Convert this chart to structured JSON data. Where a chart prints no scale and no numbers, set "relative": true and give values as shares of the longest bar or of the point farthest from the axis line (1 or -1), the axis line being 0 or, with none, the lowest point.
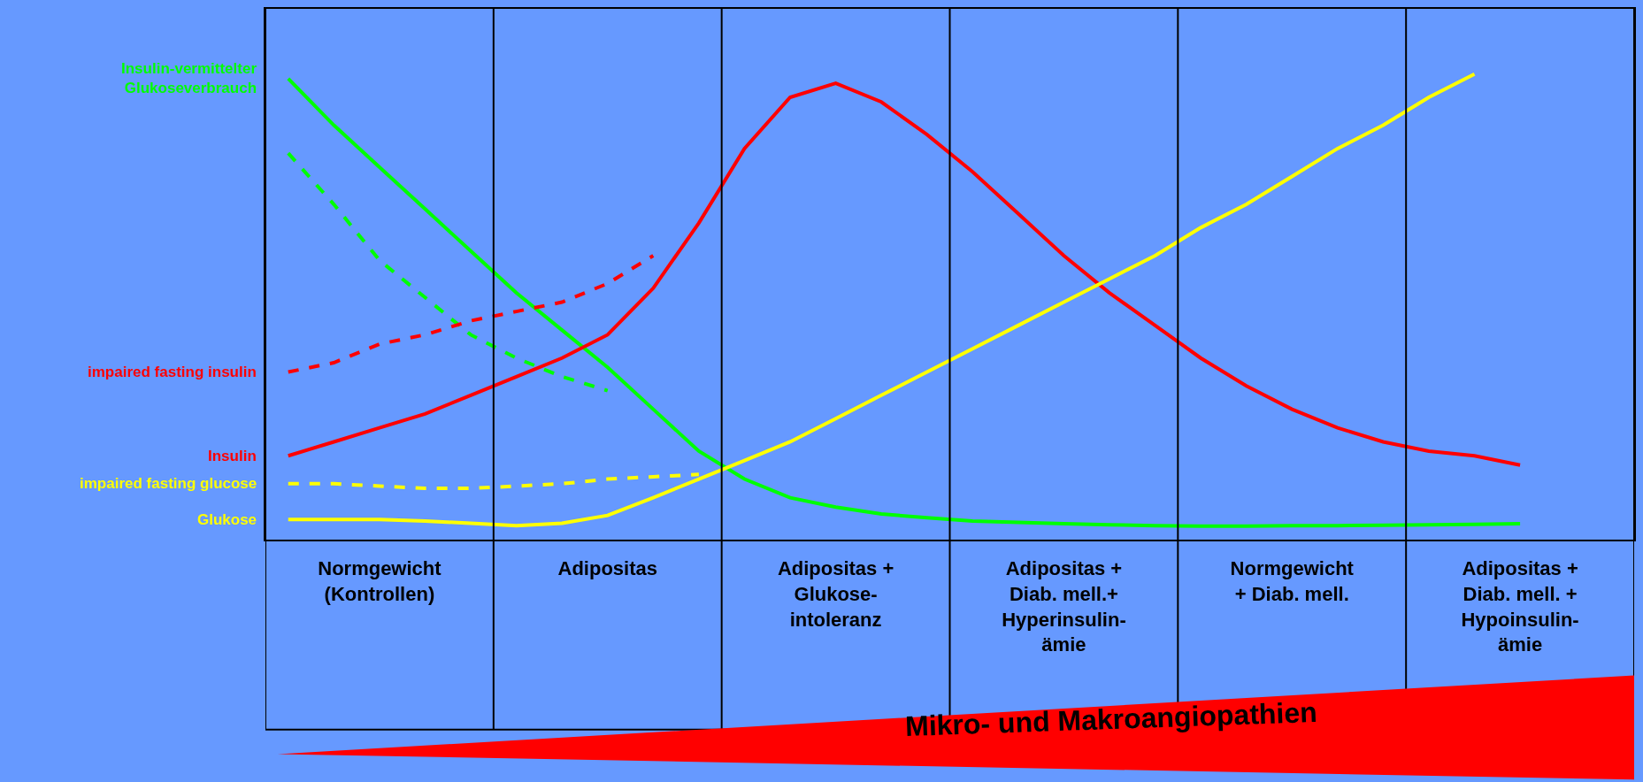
{
  "chart_data": {
    "type": "line",
    "relative": true,
    "grid": "x",
    "legend": false,
    "tick_labels": "x",
    "categories": [
      null,
      null,
      "Normgewicht\n(Kontrollen)",
      null,
      null,
      null,
      null,
      "Adipositas",
      null,
      null,
      null,
      null,
      "Adipositas +\nGlukose-\nintoleranz",
      null,
      null,
      null,
      null,
      "Adipositas +\nDiab. mell.+\nHyperinsulin-\nämie",
      null,
      null,
      null,
      null,
      "Normgewicht\n+ Diab. mell.",
      null,
      null,
      null,
      null,
      "Adipositas +\nDiab. mell. +\nHypoinsulin-\nämie",
      null,
      null
    ],
    "series": [
      {
        "name": "Insulin-vermittelter\nGlukoseverbrauch",
        "color": "#00ff00",
        "line_style": "solid",
        "values": [
          0.99,
          0.89,
          0.8,
          0.71,
          0.62,
          0.53,
          0.45,
          0.37,
          0.28,
          0.19,
          0.13,
          0.09,
          0.07,
          0.055,
          0.047,
          0.04,
          0.037,
          0.034,
          0.032,
          0.03,
          0.029,
          0.029,
          0.03,
          0.03,
          0.031,
          0.032,
          0.033,
          0.034,
          null,
          null
        ]
      },
      {
        "color": "#00ff00",
        "line_style": "dashed",
        "values": [
          0.83,
          0.72,
          0.6,
          0.52,
          0.44,
          0.39,
          0.35,
          0.32,
          null,
          null,
          null,
          null,
          null,
          null,
          null,
          null,
          null,
          null,
          null,
          null,
          null,
          null,
          null,
          null,
          null,
          null,
          null,
          null,
          null,
          null
        ]
      },
      {
        "name": "impaired fasting insulin",
        "color": "#ff0000",
        "line_style": "dashed",
        "values": [
          0.36,
          0.38,
          0.42,
          0.44,
          0.47,
          0.49,
          0.51,
          0.55,
          0.61,
          null,
          null,
          null,
          null,
          null,
          null,
          null,
          null,
          null,
          null,
          null,
          null,
          null,
          null,
          null,
          null,
          null,
          null,
          null,
          null,
          null
        ]
      },
      {
        "name": "Insulin",
        "color": "#ff0000",
        "line_style": "solid",
        "values": [
          0.18,
          0.21,
          0.24,
          0.27,
          0.31,
          0.35,
          0.39,
          0.44,
          0.54,
          0.68,
          0.84,
          0.95,
          0.98,
          0.94,
          0.87,
          0.79,
          0.7,
          0.61,
          0.53,
          0.46,
          0.39,
          0.33,
          0.28,
          0.24,
          0.21,
          0.19,
          0.18,
          0.16,
          null,
          null
        ]
      },
      {
        "name": "impaired fasting glucose",
        "color": "#ffff00",
        "line_style": "dashed",
        "values": [
          0.12,
          0.12,
          0.115,
          0.11,
          0.11,
          0.115,
          0.12,
          0.13,
          0.135,
          0.14,
          null,
          null,
          null,
          null,
          null,
          null,
          null,
          null,
          null,
          null,
          null,
          null,
          null,
          null,
          null,
          null,
          null,
          null,
          null,
          null
        ]
      },
      {
        "name": "Glukose",
        "color": "#ffff00",
        "line_style": "solid",
        "values": [
          0.043,
          0.043,
          0.043,
          0.04,
          0.035,
          0.03,
          0.035,
          0.052,
          0.09,
          0.13,
          0.17,
          0.21,
          0.26,
          0.31,
          0.36,
          0.41,
          0.46,
          0.51,
          0.56,
          0.61,
          0.67,
          0.72,
          0.78,
          0.84,
          0.89,
          0.95,
          1.0,
          null,
          null,
          null
        ]
      }
    ],
    "annotations": [
      "Mikro- und Makroangiopathien"
    ]
  }
}
